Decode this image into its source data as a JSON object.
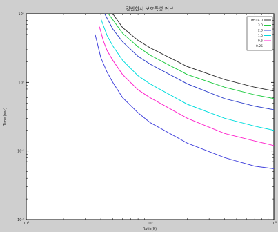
{
  "chart_data": {
    "type": "line",
    "title": "강반한시 보호특성 커브",
    "xlabel": "Ratio(It)",
    "ylabel": "Time (sec)",
    "x_scale": "log",
    "y_scale": "log",
    "xlim": [
      1,
      100
    ],
    "ylim": [
      0.01,
      10
    ],
    "x_ticks": [
      {
        "value": 1,
        "label": "10^0"
      },
      {
        "value": 10,
        "label": "10^1"
      },
      {
        "value": 100,
        "label": "10^2"
      }
    ],
    "y_ticks": [
      {
        "value": 0.01,
        "label": "10^-2"
      },
      {
        "value": 0.1,
        "label": "10^-1"
      },
      {
        "value": 1,
        "label": "10^0"
      },
      {
        "value": 10,
        "label": "10^1"
      }
    ],
    "grid": false,
    "legend_position": "top-right",
    "series": [
      {
        "name": "Tm=4.0",
        "color": "#333333",
        "points": [
          [
            5.0,
            10
          ],
          [
            6,
            6.3
          ],
          [
            8,
            4.1
          ],
          [
            10,
            3.2
          ],
          [
            20,
            1.7
          ],
          [
            40,
            1.1
          ],
          [
            70,
            0.85
          ],
          [
            100,
            0.75
          ]
        ]
      },
      {
        "name": "3.0",
        "color": "#22cc44",
        "points": [
          [
            4.6,
            10
          ],
          [
            5,
            8.2
          ],
          [
            6,
            5.2
          ],
          [
            8,
            3.3
          ],
          [
            10,
            2.5
          ],
          [
            20,
            1.3
          ],
          [
            40,
            0.85
          ],
          [
            70,
            0.66
          ],
          [
            100,
            0.58
          ]
        ]
      },
      {
        "name": "2.0",
        "color": "#3344cc",
        "points": [
          [
            4.3,
            10
          ],
          [
            5,
            6.0
          ],
          [
            6,
            3.9
          ],
          [
            8,
            2.4
          ],
          [
            10,
            1.85
          ],
          [
            20,
            0.95
          ],
          [
            40,
            0.58
          ],
          [
            70,
            0.45
          ],
          [
            100,
            0.4
          ]
        ]
      },
      {
        "name": "1.0",
        "color": "#00dddd",
        "points": [
          [
            4.0,
            8.5
          ],
          [
            4.5,
            4.8
          ],
          [
            5,
            3.4
          ],
          [
            6,
            2.1
          ],
          [
            8,
            1.25
          ],
          [
            10,
            0.95
          ],
          [
            20,
            0.48
          ],
          [
            40,
            0.3
          ],
          [
            70,
            0.23
          ],
          [
            100,
            0.2
          ]
        ]
      },
      {
        "name": "0.6",
        "color": "#ff22cc",
        "points": [
          [
            3.9,
            6.5
          ],
          [
            4.2,
            4.0
          ],
          [
            4.5,
            2.9
          ],
          [
            5,
            2.1
          ],
          [
            6,
            1.3
          ],
          [
            8,
            0.78
          ],
          [
            10,
            0.6
          ],
          [
            20,
            0.3
          ],
          [
            40,
            0.18
          ],
          [
            70,
            0.14
          ],
          [
            100,
            0.12
          ]
        ]
      },
      {
        "name": "0.25",
        "color": "#4444dd",
        "points": [
          [
            3.6,
            5.0
          ],
          [
            4.0,
            2.3
          ],
          [
            4.5,
            1.4
          ],
          [
            5,
            1.0
          ],
          [
            6,
            0.6
          ],
          [
            8,
            0.36
          ],
          [
            10,
            0.26
          ],
          [
            20,
            0.13
          ],
          [
            40,
            0.08
          ],
          [
            70,
            0.06
          ],
          [
            100,
            0.055
          ]
        ]
      }
    ]
  }
}
